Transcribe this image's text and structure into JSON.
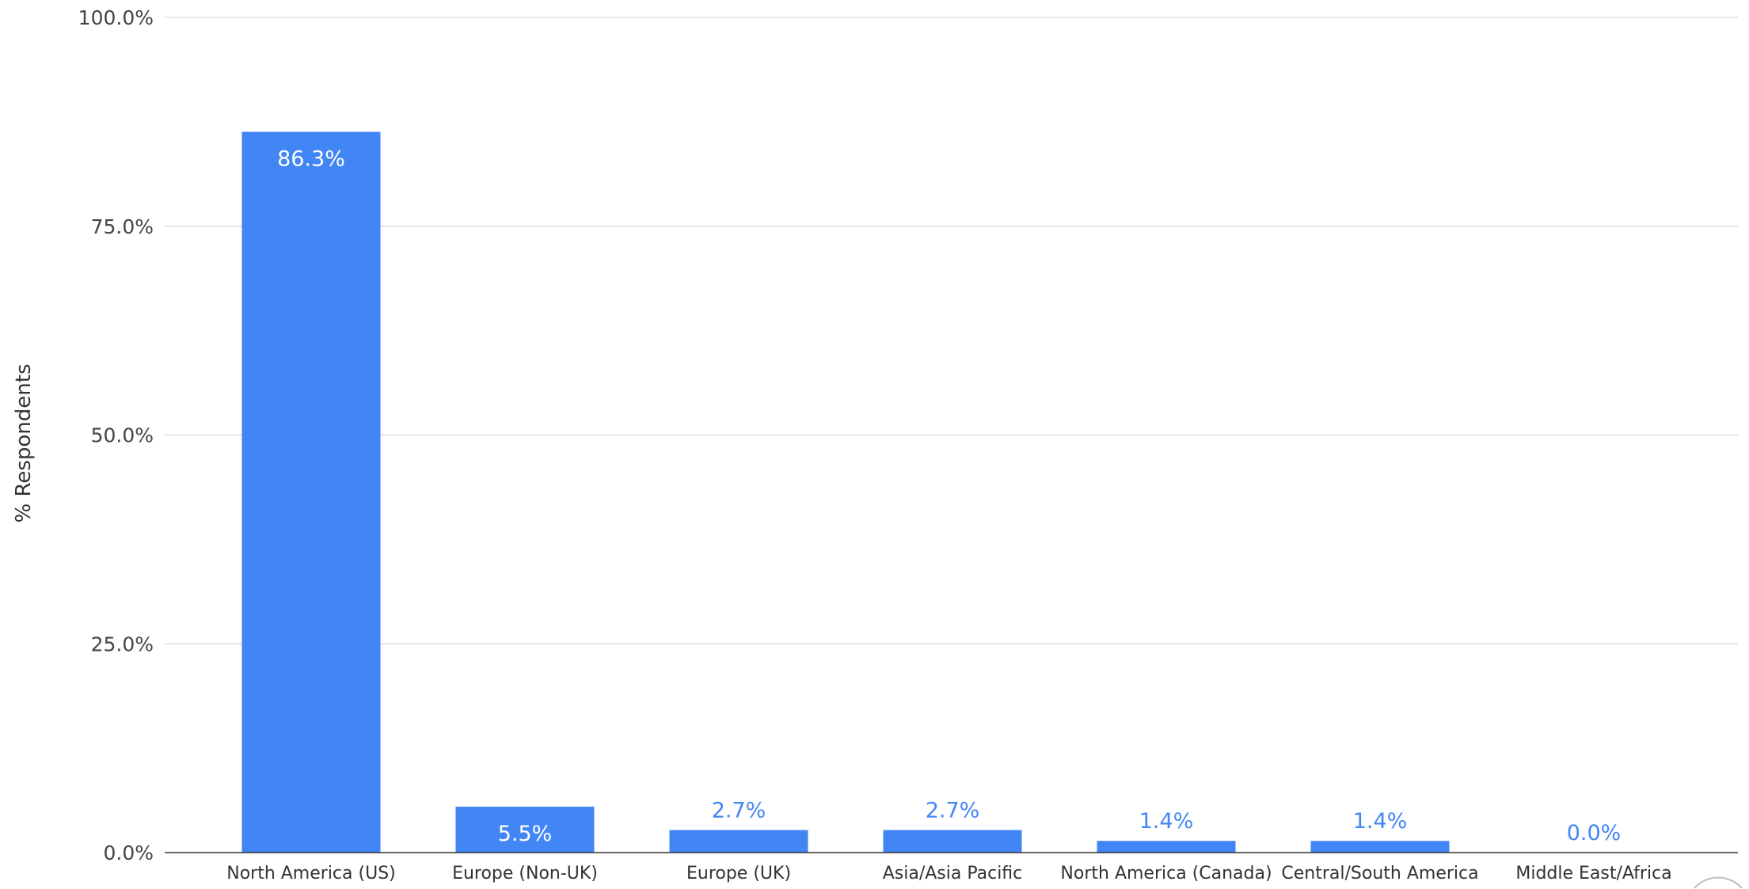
{
  "colors": {
    "bar": "#4285f4",
    "label_inside": "#ffffff",
    "label_outside": "#4285f4",
    "grid": "#dddddd",
    "axis": "#333333"
  },
  "chart_data": {
    "type": "bar",
    "title": "",
    "xlabel": "",
    "ylabel": "% Respondents",
    "categories": [
      "North America (US)",
      "Europe (Non-UK)",
      "Europe (UK)",
      "Asia/Asia Pacific",
      "North America (Canada)",
      "Central/South America",
      "Middle East/Africa"
    ],
    "values": [
      86.3,
      5.5,
      2.7,
      2.7,
      1.4,
      1.4,
      0.0
    ],
    "value_labels": [
      "86.3%",
      "5.5%",
      "2.7%",
      "2.7%",
      "1.4%",
      "1.4%",
      "0.0%"
    ],
    "ylim": [
      0,
      100
    ],
    "yticks": [
      0,
      25,
      50,
      75,
      100
    ],
    "ytick_labels": [
      "0.0%",
      "25.0%",
      "50.0%",
      "75.0%",
      "100.0%"
    ],
    "grid": true,
    "legend": "none"
  }
}
